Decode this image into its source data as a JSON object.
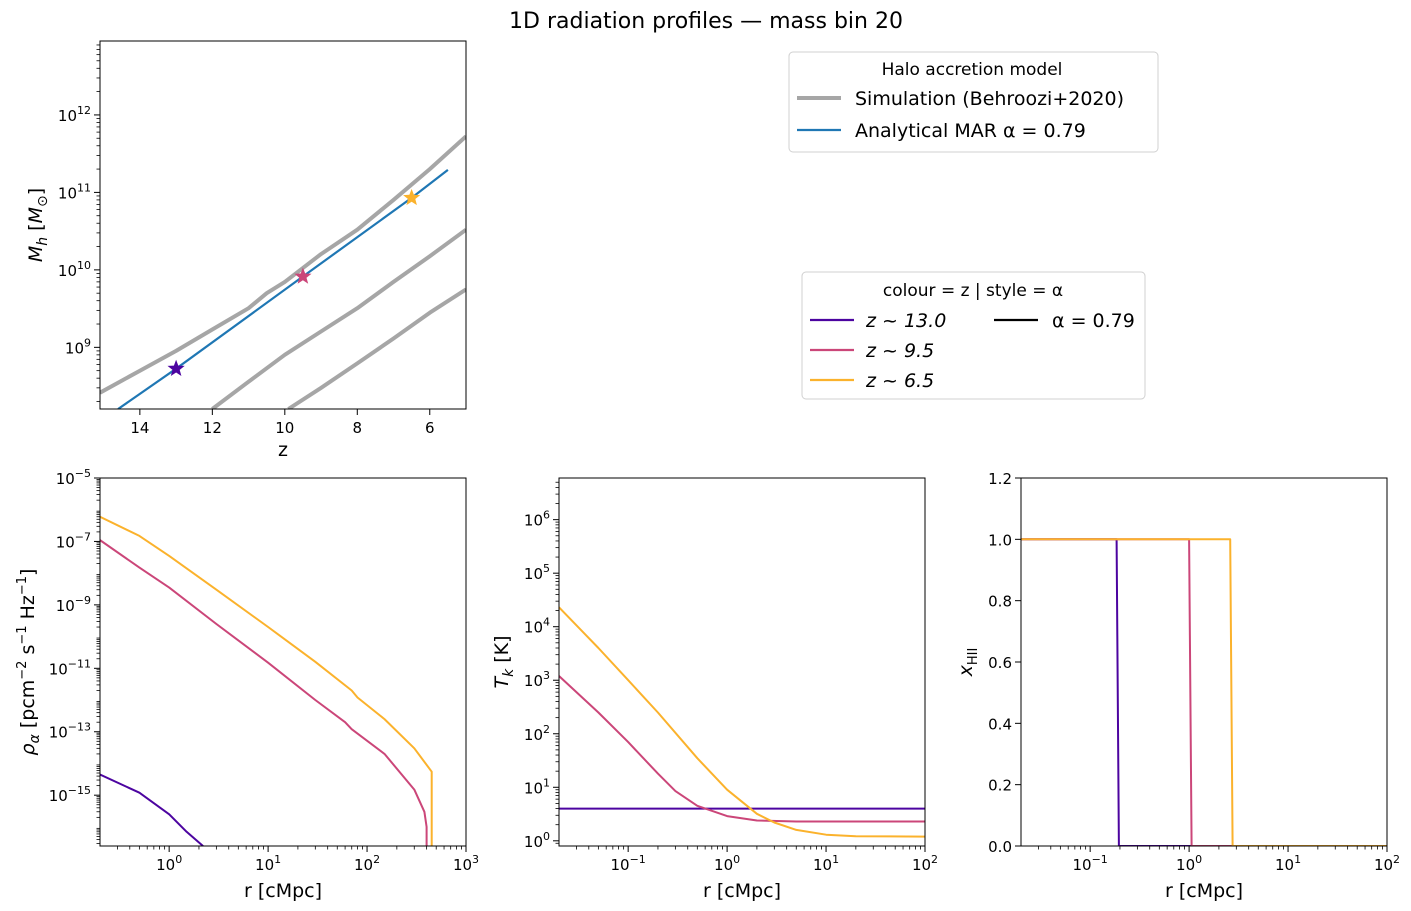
{
  "figure": {
    "title": "1D radiation profiles — mass bin 20"
  },
  "colors": {
    "z13": "#4c04a0",
    "z9_5": "#cb4679",
    "z6_5": "#fbb22c",
    "simulation": "#a6a6a6",
    "analytical": "#1f77b4",
    "style_black": "#000000"
  },
  "legends": {
    "accretion": {
      "title": "Halo accretion model",
      "entries": [
        "Simulation (Behroozi+2020)",
        "Analytical MAR  α = 0.79"
      ]
    },
    "colour_style": {
      "title": "colour = z  |  style = α",
      "z_entries": [
        "z ~ 13.0",
        "z ~ 9.5",
        "z ~ 6.5"
      ],
      "style_entries": [
        "α = 0.79"
      ]
    }
  },
  "chart_data": [
    {
      "type": "line",
      "id": "mass_history",
      "xlabel": "z",
      "ylabel": "M_h [M⊙]",
      "xlim": [
        15.1,
        5.0
      ],
      "ylim": [
        160000000.0,
        9000000000000.0
      ],
      "yscale": "log",
      "xticks": [
        {
          "v": 14,
          "label": "14"
        },
        {
          "v": 12,
          "label": "12"
        },
        {
          "v": 10,
          "label": "10"
        },
        {
          "v": 8,
          "label": "8"
        },
        {
          "v": 6,
          "label": "6"
        }
      ],
      "yticks": [
        {
          "v": 1000000000.0,
          "label": "10^9"
        },
        {
          "v": 10000000000.0,
          "label": "10^10"
        },
        {
          "v": 100000000000.0,
          "label": "10^11"
        },
        {
          "v": 1000000000000.0,
          "label": "10^12"
        }
      ],
      "series": [
        {
          "name": "Simulation (Behroozi+2020)",
          "color_key": "simulation",
          "width": 4,
          "x": [
            15.1,
            14.0,
            13.0,
            12.0,
            11.0,
            10.5,
            10.0,
            9.0,
            8.0,
            7.0,
            6.0,
            5.0
          ],
          "y": [
            260000000.0,
            500000000.0,
            900000000.0,
            1700000000.0,
            3200000000.0,
            5000000000.0,
            7000000000.0,
            16000000000.0,
            33000000000.0,
            80000000000.0,
            200000000000.0,
            530000000000.0
          ]
        },
        {
          "name": "",
          "color_key": "simulation",
          "width": 4,
          "x": [
            12.0,
            11.0,
            10.0,
            9.0,
            8.0,
            7.0,
            6.0,
            5.0
          ],
          "y": [
            160000000.0,
            360000000.0,
            800000000.0,
            1600000000.0,
            3200000000.0,
            7000000000.0,
            15000000000.0,
            33000000000.0
          ]
        },
        {
          "name": "",
          "color_key": "simulation",
          "width": 4,
          "x": [
            9.9,
            9.0,
            8.0,
            7.0,
            6.0,
            5.0
          ],
          "y": [
            160000000.0,
            300000000.0,
            620000000.0,
            1300000000.0,
            2800000000.0,
            5600000000.0
          ]
        },
        {
          "name": "Analytical MAR  α = 0.79",
          "color_key": "analytical",
          "width": 2.2,
          "x": [
            14.6,
            13.0,
            9.5,
            6.5,
            5.5
          ],
          "y": [
            160000000.0,
            530000000.0,
            8200000000.0,
            85000000000.0,
            195000000000.0
          ]
        }
      ],
      "markers": [
        {
          "x": 13.0,
          "y": 530000000.0,
          "color_key": "z13"
        },
        {
          "x": 9.5,
          "y": 8200000000.0,
          "color_key": "z9_5"
        },
        {
          "x": 6.5,
          "y": 85000000000.0,
          "color_key": "z6_5"
        }
      ]
    },
    {
      "type": "line",
      "id": "rho_alpha",
      "xlabel": "r [cMpc]",
      "ylabel": "ρ_α [pcm^-2 s^-1 Hz^-1]",
      "xscale": "log",
      "yscale": "log",
      "xlim": [
        0.2,
        1000
      ],
      "ylim": [
        2.5e-17,
        1e-05
      ],
      "xticks": [
        {
          "v": 1,
          "label": "10^0"
        },
        {
          "v": 10,
          "label": "10^1"
        },
        {
          "v": 100,
          "label": "10^2"
        },
        {
          "v": 1000,
          "label": "10^3"
        }
      ],
      "yticks": [
        {
          "v": 1e-15,
          "label": "10^-15"
        },
        {
          "v": 1e-13,
          "label": "10^-13"
        },
        {
          "v": 1e-11,
          "label": "10^-11"
        },
        {
          "v": 1e-09,
          "label": "10^-9"
        },
        {
          "v": 1e-07,
          "label": "10^-7"
        },
        {
          "v": 1e-05,
          "label": "10^-5"
        }
      ],
      "series": [
        {
          "name": "z ~ 13.0",
          "color_key": "z13",
          "x": [
            0.2,
            0.5,
            1.0,
            1.5,
            2.2
          ],
          "y": [
            4.5e-15,
            1.2e-15,
            2.5e-16,
            7e-17,
            2.5e-17
          ]
        },
        {
          "name": "z ~ 9.5",
          "color_key": "z9_5",
          "x": [
            0.2,
            0.5,
            1,
            3,
            10,
            30,
            60,
            70,
            150,
            300,
            380,
            400,
            400
          ],
          "y": [
            1.1e-07,
            1.5e-08,
            3.5e-09,
            2.5e-10,
            1.5e-11,
            1e-12,
            2e-13,
            1.2e-13,
            2e-14,
            1.5e-15,
            3e-16,
            1e-16,
            2.5e-17
          ]
        },
        {
          "name": "z ~ 6.5",
          "color_key": "z6_5",
          "x": [
            0.2,
            0.5,
            1,
            3,
            10,
            30,
            70,
            80,
            150,
            300,
            450,
            450
          ],
          "y": [
            6e-07,
            1.5e-07,
            3.5e-08,
            3e-09,
            2e-10,
            1.6e-11,
            2e-12,
            1.2e-12,
            2.5e-13,
            3e-14,
            5.5e-15,
            2.5e-17
          ]
        }
      ]
    },
    {
      "type": "line",
      "id": "temperature",
      "xlabel": "r [cMpc]",
      "ylabel": "T_k [K]",
      "xscale": "log",
      "yscale": "log",
      "xlim": [
        0.02,
        100
      ],
      "ylim": [
        0.8,
        6000000.0
      ],
      "xticks": [
        {
          "v": 0.1,
          "label": "10^-1"
        },
        {
          "v": 1,
          "label": "10^0"
        },
        {
          "v": 10,
          "label": "10^1"
        },
        {
          "v": 100,
          "label": "10^2"
        }
      ],
      "yticks": [
        {
          "v": 1,
          "label": "10^0"
        },
        {
          "v": 10,
          "label": "10^1"
        },
        {
          "v": 100,
          "label": "10^2"
        },
        {
          "v": 1000,
          "label": "10^3"
        },
        {
          "v": 10000,
          "label": "10^4"
        },
        {
          "v": 100000,
          "label": "10^5"
        },
        {
          "v": 1000000,
          "label": "10^6"
        }
      ],
      "series": [
        {
          "name": "z ~ 13.0",
          "color_key": "z13",
          "x": [
            0.02,
            100
          ],
          "y": [
            4.0,
            4.0
          ]
        },
        {
          "name": "z ~ 9.5",
          "color_key": "z9_5",
          "x": [
            0.02,
            0.05,
            0.1,
            0.2,
            0.3,
            0.5,
            1,
            2,
            5,
            10,
            100
          ],
          "y": [
            1200,
            250,
            70,
            18,
            8.5,
            4.5,
            2.9,
            2.4,
            2.3,
            2.3,
            2.3
          ]
        },
        {
          "name": "z ~ 6.5",
          "color_key": "z6_5",
          "x": [
            0.02,
            0.05,
            0.1,
            0.2,
            0.5,
            1,
            2,
            3,
            5,
            10,
            20,
            100
          ],
          "y": [
            23000,
            4000,
            1000,
            250,
            35,
            9,
            3.2,
            2.2,
            1.6,
            1.3,
            1.22,
            1.2
          ]
        }
      ]
    },
    {
      "type": "line",
      "id": "ionized_fraction",
      "xlabel": "r [cMpc]",
      "ylabel": "x_HII",
      "xscale": "log",
      "xlim": [
        0.02,
        100
      ],
      "ylim": [
        0.0,
        1.2
      ],
      "xticks": [
        {
          "v": 0.1,
          "label": "10^-1"
        },
        {
          "v": 1,
          "label": "10^0"
        },
        {
          "v": 10,
          "label": "10^1"
        },
        {
          "v": 100,
          "label": "10^2"
        }
      ],
      "yticks": [
        {
          "v": 0.0,
          "label": "0.0"
        },
        {
          "v": 0.2,
          "label": "0.2"
        },
        {
          "v": 0.4,
          "label": "0.4"
        },
        {
          "v": 0.6,
          "label": "0.6"
        },
        {
          "v": 0.8,
          "label": "0.8"
        },
        {
          "v": 1.0,
          "label": "1.0"
        },
        {
          "v": 1.2,
          "label": "1.2"
        }
      ],
      "series": [
        {
          "name": "z ~ 13.0",
          "color_key": "z13",
          "x": [
            0.02,
            0.185,
            0.195,
            100
          ],
          "y": [
            1.0,
            1.0,
            0.0,
            0.0
          ]
        },
        {
          "name": "z ~ 9.5",
          "color_key": "z9_5",
          "x": [
            0.02,
            1.0,
            1.06,
            100
          ],
          "y": [
            1.0,
            1.0,
            0.0,
            0.0
          ]
        },
        {
          "name": "z ~ 6.5",
          "color_key": "z6_5",
          "x": [
            0.02,
            2.6,
            2.75,
            100
          ],
          "y": [
            1.0,
            1.0,
            0.0,
            0.0
          ]
        }
      ]
    }
  ]
}
